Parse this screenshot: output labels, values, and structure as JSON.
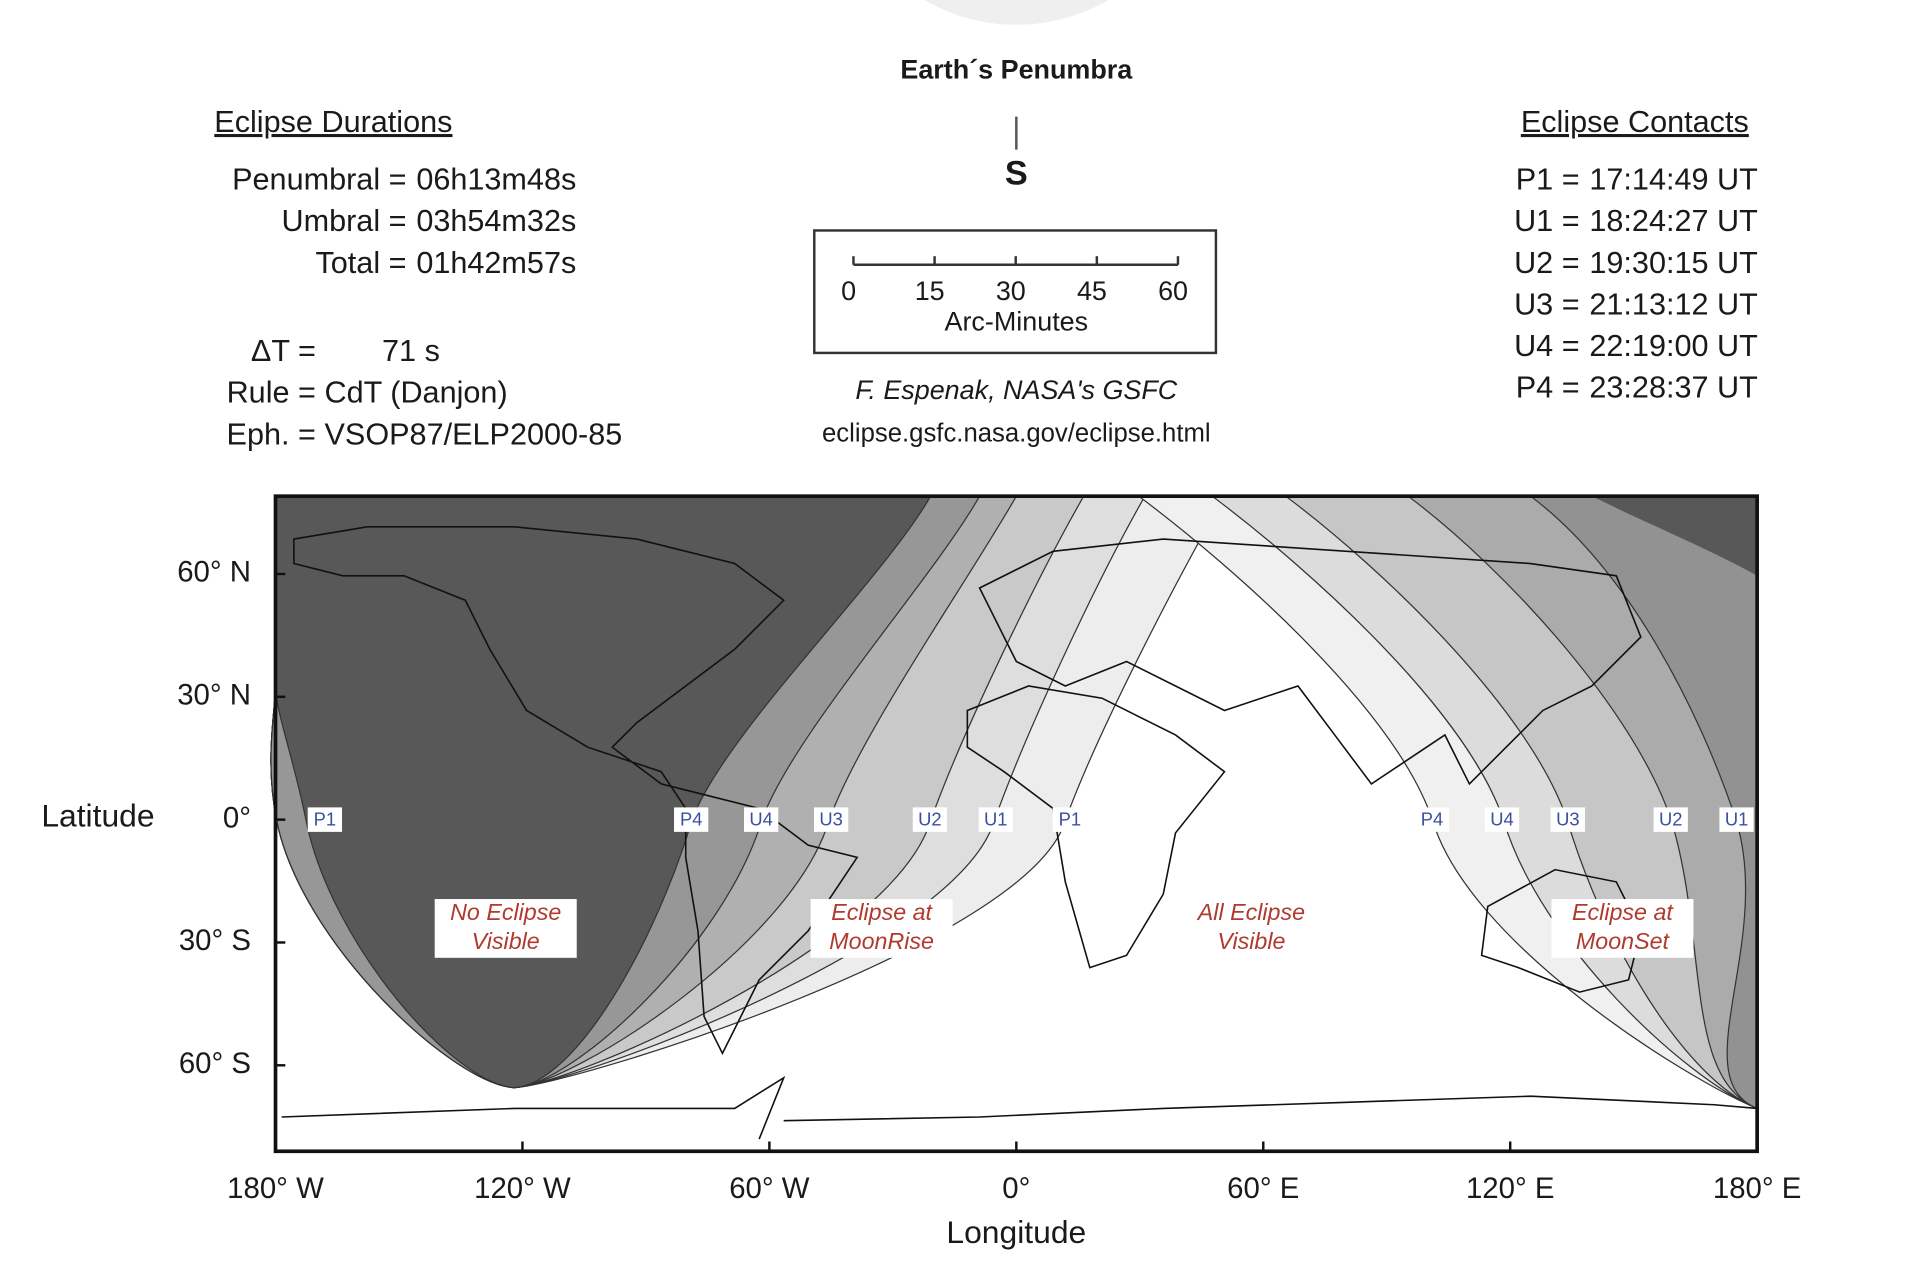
{
  "header": {
    "title": "Earth´s Penumbra",
    "direction": "S"
  },
  "scale": {
    "ticks": [
      0,
      15,
      30,
      45,
      60
    ],
    "label": "Arc-Minutes"
  },
  "credit": {
    "author": "F. Espenak, NASA's GSFC",
    "url": "eclipse.gsfc.nasa.gov/eclipse.html"
  },
  "durations": {
    "title": "Eclipse Durations",
    "rows": [
      {
        "label": "Penumbral =",
        "value": "06h13m48s"
      },
      {
        "label": "Umbral =",
        "value": "03h54m32s"
      },
      {
        "label": "Total =",
        "value": "01h42m57s"
      }
    ]
  },
  "parameters": [
    {
      "label": "ΔT =",
      "value": "71 s"
    },
    {
      "label": "Rule =",
      "value": "CdT (Danjon)"
    },
    {
      "label": "Eph. =",
      "value": "VSOP87/ELP2000-85"
    }
  ],
  "contacts": {
    "title": "Eclipse Contacts",
    "rows": [
      {
        "label": "P1 =",
        "value": "17:14:49 UT"
      },
      {
        "label": "U1 =",
        "value": "18:24:27 UT"
      },
      {
        "label": "U2 =",
        "value": "19:30:15 UT"
      },
      {
        "label": "U3 =",
        "value": "21:13:12 UT"
      },
      {
        "label": "U4 =",
        "value": "22:19:00 UT"
      },
      {
        "label": "P4 =",
        "value": "23:28:37 UT"
      }
    ]
  },
  "map": {
    "x_label": "Longitude",
    "y_label": "Latitude",
    "xlim": [
      -180,
      180
    ],
    "ylim": [
      -81,
      79
    ],
    "xticks": [
      {
        "value": -180,
        "label": "180° W"
      },
      {
        "value": -120,
        "label": "120° W"
      },
      {
        "value": -60,
        "label": "60° W"
      },
      {
        "value": 0,
        "label": "0°"
      },
      {
        "value": 60,
        "label": "60° E"
      },
      {
        "value": 120,
        "label": "120° E"
      },
      {
        "value": 180,
        "label": "180° E"
      }
    ],
    "yticks": [
      {
        "value": 60,
        "label": "60° N"
      },
      {
        "value": 30,
        "label": "30° N"
      },
      {
        "value": 0,
        "label": "0°"
      },
      {
        "value": -30,
        "label": "30° S"
      },
      {
        "value": -60,
        "label": "60° S"
      }
    ],
    "contact_markers": [
      {
        "label": "P1",
        "lon": -168
      },
      {
        "label": "P4",
        "lon": -79
      },
      {
        "label": "U4",
        "lon": -62
      },
      {
        "label": "U3",
        "lon": -45
      },
      {
        "label": "U2",
        "lon": -21
      },
      {
        "label": "U1",
        "lon": -5
      },
      {
        "label": "P1",
        "lon": 13
      },
      {
        "label": "P4",
        "lon": 101
      },
      {
        "label": "U4",
        "lon": 118
      },
      {
        "label": "U3",
        "lon": 134
      },
      {
        "label": "U2",
        "lon": 159
      },
      {
        "label": "U1",
        "lon": 175
      }
    ],
    "regions": [
      {
        "lines": [
          "No Eclipse",
          "Visible"
        ]
      },
      {
        "lines": [
          "Eclipse at",
          "MoonRise"
        ]
      },
      {
        "lines": [
          "All Eclipse",
          "Visible"
        ]
      },
      {
        "lines": [
          "Eclipse at",
          "MoonSet"
        ]
      }
    ]
  }
}
